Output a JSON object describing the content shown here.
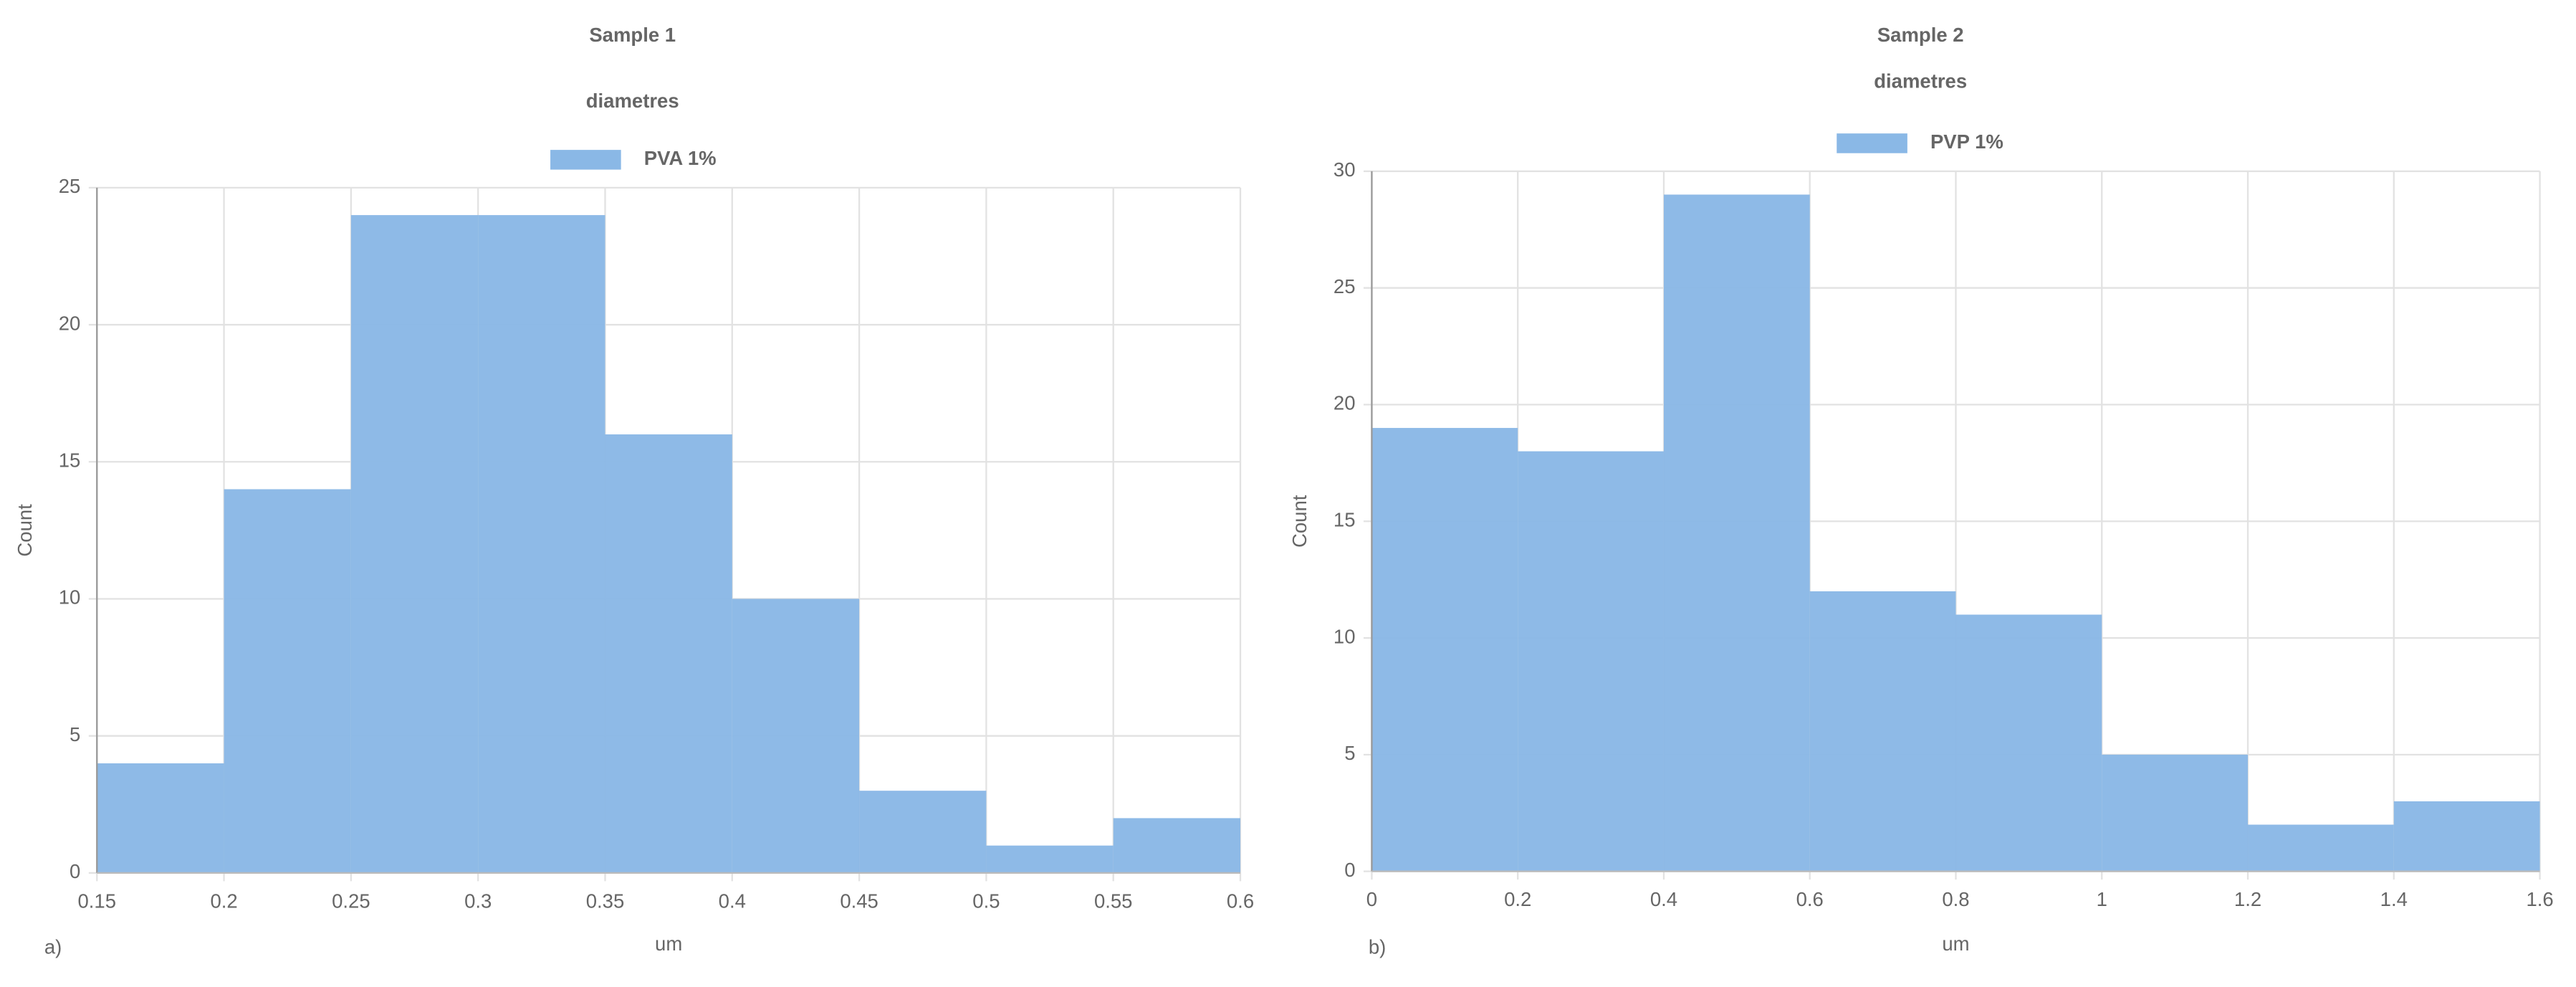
{
  "chart_data": [
    {
      "type": "histogram",
      "title": "Sample 1",
      "subtitle": "diametres",
      "panel_label": "a)",
      "x_label": "um",
      "y_label": "Count",
      "bins": [
        0.15,
        0.2,
        0.25,
        0.3,
        0.35,
        0.4,
        0.45,
        0.5,
        0.55,
        0.6
      ],
      "series": [
        {
          "name": "PVA 1%",
          "color": "#8ab8e6",
          "values": [
            4,
            14,
            24,
            24,
            16,
            10,
            3,
            1,
            2
          ]
        }
      ],
      "xlim": [
        0.15,
        0.6
      ],
      "xticks": [
        0.15,
        0.2,
        0.25,
        0.3,
        0.35,
        0.4,
        0.45,
        0.5,
        0.55,
        0.6
      ],
      "ylim": [
        0,
        25
      ],
      "yticks": [
        0,
        5,
        10,
        15,
        20,
        25
      ],
      "grid": true
    },
    {
      "type": "histogram",
      "title": "Sample 2",
      "subtitle": "diametres",
      "panel_label": "b)",
      "x_label": "um",
      "y_label": "Count",
      "bins": [
        0,
        0.2,
        0.4,
        0.6,
        0.8,
        1,
        1.2,
        1.4,
        1.6
      ],
      "series": [
        {
          "name": "PVP 1%",
          "color": "#8ab8e6",
          "values": [
            19,
            18,
            29,
            12,
            11,
            5,
            2,
            3
          ]
        }
      ],
      "xlim": [
        0,
        1.6
      ],
      "xticks": [
        0,
        0.2,
        0.4,
        0.6,
        0.8,
        1,
        1.2,
        1.4,
        1.6
      ],
      "ylim": [
        0,
        30
      ],
      "yticks": [
        0,
        5,
        10,
        15,
        20,
        25,
        30
      ],
      "grid": true
    }
  ]
}
